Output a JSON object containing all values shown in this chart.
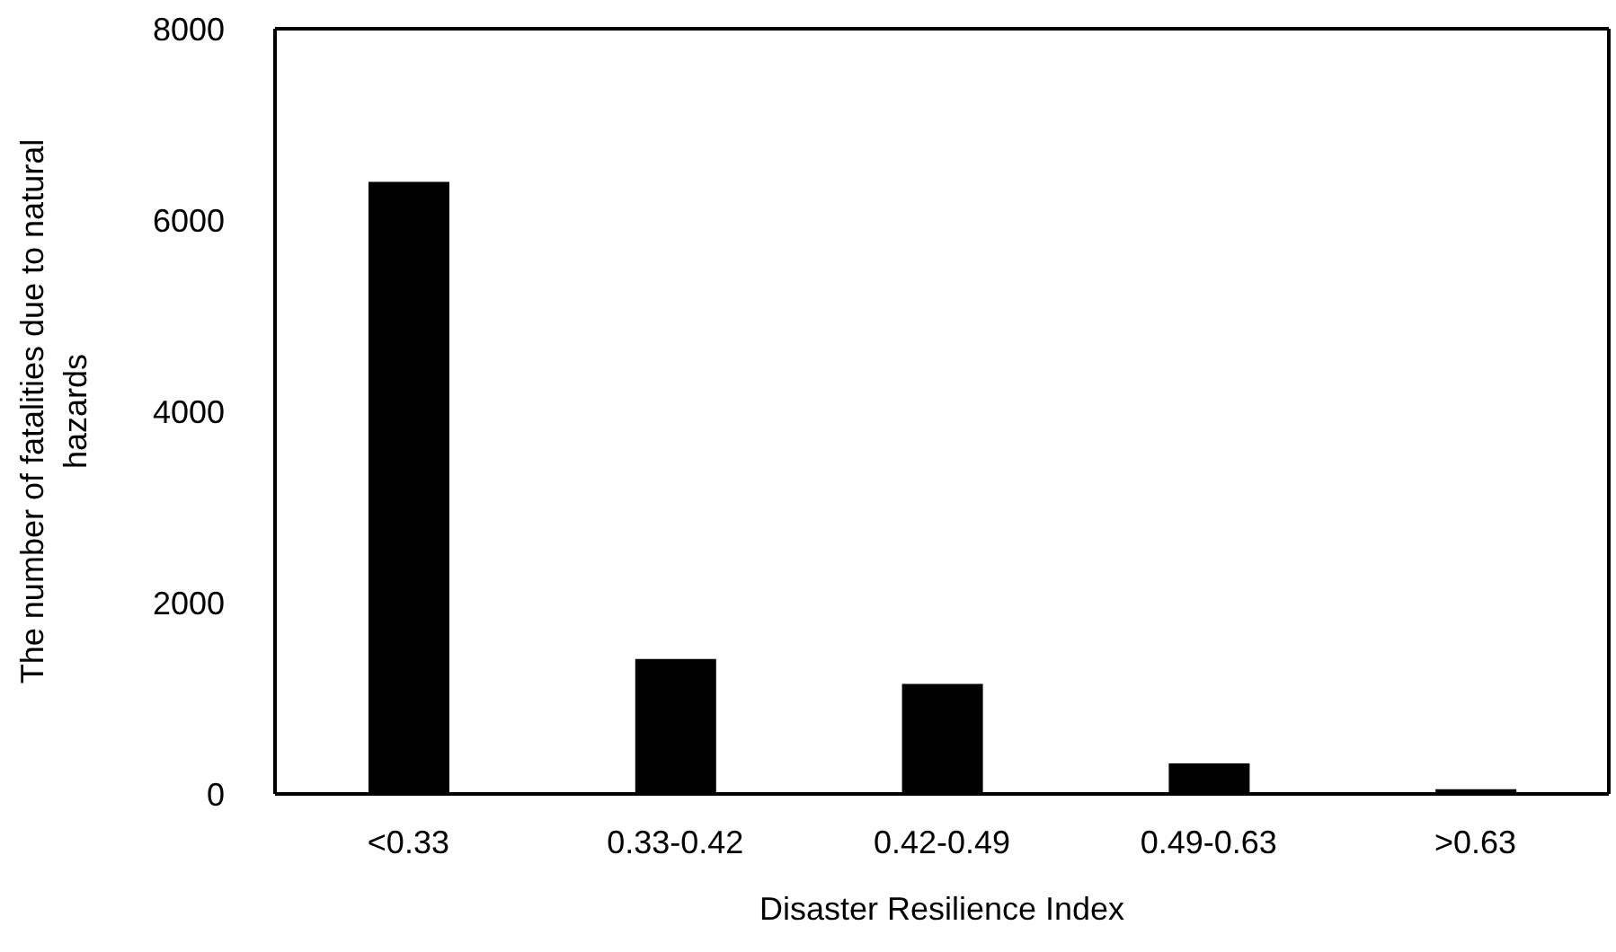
{
  "chart_data": {
    "type": "bar",
    "xlabel": "Disaster Resilience Index",
    "ylabel": "The number of fatalities due to natural hazards",
    "categories": [
      "<0.33",
      "0.33-0.42",
      "0.42-0.49",
      "0.49-0.63",
      ">0.63"
    ],
    "values": [
      6400,
      1410,
      1150,
      320,
      50
    ],
    "color": "#000000",
    "ylim": [
      0,
      8000
    ],
    "yticks": [
      0,
      2000,
      4000,
      6000,
      8000
    ],
    "grid": false
  }
}
